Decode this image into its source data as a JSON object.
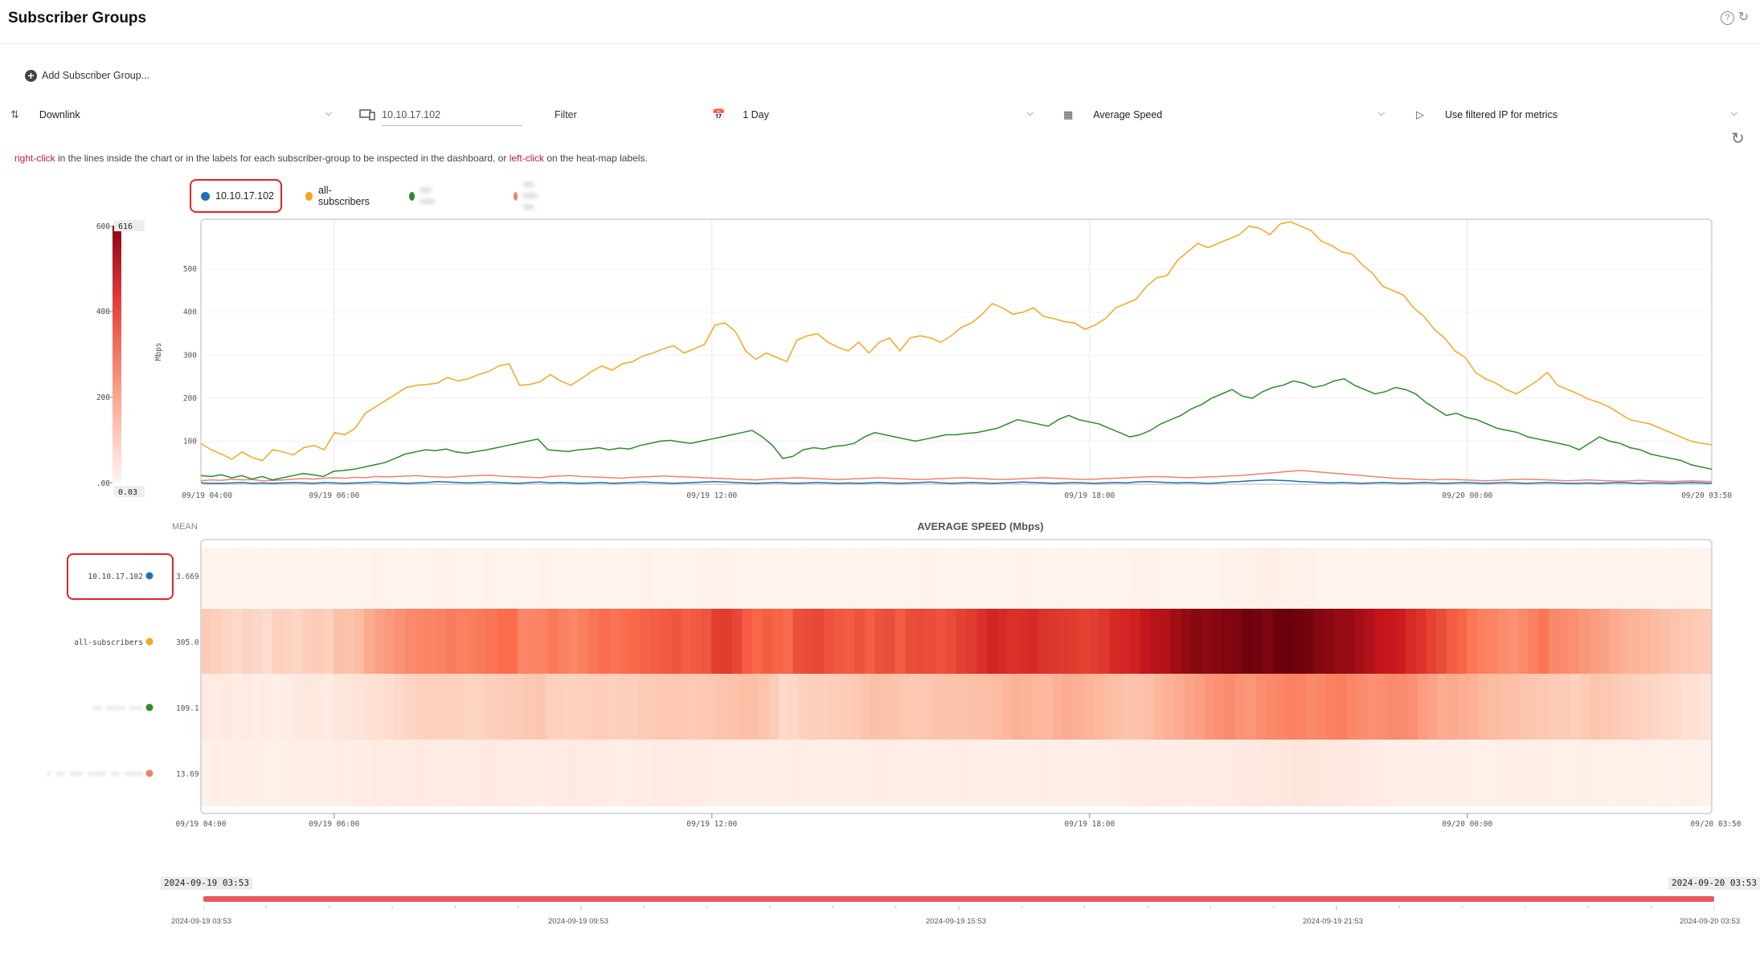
{
  "header": {
    "title": "Subscriber Groups",
    "help_icon": "question-circle-icon",
    "refresh_icon": "refresh-icon"
  },
  "toolbar": {
    "add_group_label": "Add Subscriber Group...",
    "direction": "Downlink",
    "ip_filter_value": "10.10.17.102",
    "filter_label": "Filter",
    "period": "1 Day",
    "metric": "Average Speed",
    "ip_mode": "Use filtered IP for metrics"
  },
  "hint": {
    "right_click": "right-click",
    "middle": " in the lines inside the chart or in the labels for each subscriber-group to be inspected in the dashboard, or ",
    "left_click": "left-click",
    "end": " on the heat-map labels."
  },
  "legend": [
    {
      "name": "10.10.17.102",
      "color": "#1f6fb2"
    },
    {
      "name": "all-subscribers",
      "color": "#f5a623"
    },
    {
      "name": "••• ••••",
      "color": "#2e8b2e",
      "blurred": true
    },
    {
      "name": "••• •••• •••",
      "color": "#f08070",
      "blurred": true
    }
  ],
  "colors": {
    "accent_red": "#e0242a",
    "hint_red": "#c21d3f",
    "heat_max": "#6b0013",
    "heat_min": "#fff5f0"
  },
  "color_scale": {
    "max_label": "616",
    "min_label": "0.03",
    "ticks": [
      "600",
      "400",
      "200",
      "0.00"
    ]
  },
  "line_chart": {
    "ylabel": "Mbps",
    "y_ticks": [
      "100",
      "200",
      "300",
      "400",
      "500"
    ],
    "x_ticks": [
      "09/19 04:00",
      "09/19 06:00",
      "09/19 12:00",
      "09/19 18:00",
      "09/20 00:00",
      "09/20 03:50"
    ]
  },
  "heatmap": {
    "title": "AVERAGE SPEED (Mbps)",
    "mean_label": "MEAN",
    "rows": [
      {
        "label": "10.10.17.102",
        "mean": "3.669",
        "color": "#1f6fb2"
      },
      {
        "label": "all-subscribers",
        "mean": "305.0",
        "color": "#f5a623"
      },
      {
        "label": "•• •••• •••",
        "mean": "109.1",
        "color": "#2e8b2e",
        "blurred": true
      },
      {
        "label": "• •• ••• •••• •• ••••",
        "mean": "13.69",
        "color": "#f08070",
        "blurred": true
      }
    ],
    "x_ticks": [
      "09/19 04:00",
      "09/19 06:00",
      "09/19 12:00",
      "09/19 18:00",
      "09/20 00:00",
      "09/20 03:50"
    ]
  },
  "timeline": {
    "start": "2024-09-19 03:53",
    "end": "2024-09-20 03:53",
    "labels": [
      "2024-09-19 03:53",
      "2024-09-19 09:53",
      "2024-09-19 15:53",
      "2024-09-19 21:53",
      "2024-09-20 03:53"
    ]
  },
  "chart_data": {
    "type": "line",
    "ylabel": "Mbps",
    "x_range": [
      "09/19 03:53",
      "09/20 03:53"
    ],
    "ylim": [
      0,
      616
    ],
    "series": [
      {
        "name": "all-subscribers",
        "color": "#f5a623",
        "values": [
          95,
          80,
          70,
          58,
          75,
          62,
          55,
          80,
          75,
          68,
          85,
          90,
          80,
          120,
          115,
          130,
          165,
          180,
          195,
          210,
          225,
          230,
          232,
          235,
          248,
          240,
          245,
          255,
          262,
          275,
          280,
          230,
          232,
          238,
          255,
          240,
          230,
          245,
          262,
          275,
          265,
          280,
          285,
          298,
          305,
          315,
          322,
          305,
          315,
          325,
          370,
          375,
          355,
          310,
          290,
          305,
          295,
          285,
          335,
          345,
          350,
          330,
          318,
          310,
          330,
          305,
          330,
          340,
          310,
          340,
          345,
          340,
          330,
          345,
          365,
          375,
          395,
          420,
          410,
          395,
          400,
          410,
          390,
          385,
          378,
          375,
          360,
          370,
          385,
          410,
          420,
          430,
          460,
          480,
          485,
          520,
          540,
          560,
          550,
          560,
          570,
          580,
          600,
          595,
          580,
          605,
          610,
          600,
          590,
          565,
          555,
          540,
          535,
          510,
          490,
          460,
          450,
          440,
          410,
          390,
          360,
          340,
          310,
          295,
          260,
          245,
          235,
          220,
          210,
          225,
          240,
          260,
          230,
          220,
          210,
          198,
          190,
          180,
          165,
          150,
          145,
          140,
          130,
          120,
          110,
          100,
          95,
          92
        ]
      },
      {
        "name": "10.10.17.102",
        "color": "#1f6fb2",
        "values": [
          3,
          2,
          2,
          3,
          4,
          2,
          3,
          2,
          3,
          4,
          3,
          2,
          4,
          3,
          2,
          3,
          4,
          5,
          4,
          3,
          2,
          3,
          4,
          6,
          5,
          4,
          3,
          4,
          5,
          4,
          3,
          2,
          4,
          5,
          3,
          4,
          3,
          2,
          3,
          4,
          2,
          3,
          4,
          5,
          4,
          3,
          2,
          3,
          4,
          5,
          6,
          5,
          4,
          3,
          2,
          3,
          4,
          3,
          2,
          3,
          4,
          3,
          2,
          3,
          2,
          3,
          4,
          3,
          2,
          3,
          4,
          5,
          3,
          2,
          3,
          4,
          3,
          2,
          3,
          4,
          5,
          4,
          3,
          2,
          3,
          4,
          3,
          2,
          3,
          4,
          3,
          5,
          6,
          5,
          4,
          3,
          4,
          3,
          2,
          3,
          5,
          6,
          8,
          9,
          10,
          9,
          8,
          6,
          5,
          4,
          3,
          4,
          3,
          2,
          3,
          4,
          3,
          2,
          3,
          4,
          3,
          2,
          3,
          4,
          3,
          2,
          3,
          4,
          3,
          2,
          3,
          4,
          3,
          2,
          2,
          3,
          2,
          3,
          4,
          3,
          2,
          3,
          3,
          2,
          3,
          4,
          3,
          2
        ]
      },
      {
        "name": "••• ••••",
        "color": "#2e8b2e",
        "values": [
          20,
          18,
          22,
          15,
          20,
          12,
          18,
          10,
          15,
          20,
          25,
          22,
          18,
          30,
          32,
          35,
          40,
          45,
          50,
          60,
          70,
          75,
          80,
          78,
          82,
          75,
          72,
          76,
          80,
          85,
          90,
          95,
          100,
          105,
          80,
          78,
          76,
          80,
          82,
          85,
          80,
          84,
          82,
          90,
          95,
          100,
          102,
          98,
          95,
          100,
          105,
          110,
          115,
          120,
          125,
          110,
          90,
          60,
          65,
          80,
          85,
          82,
          88,
          90,
          95,
          110,
          120,
          115,
          110,
          105,
          100,
          105,
          110,
          115,
          115,
          118,
          120,
          125,
          130,
          140,
          150,
          145,
          140,
          135,
          150,
          160,
          150,
          145,
          140,
          130,
          120,
          110,
          115,
          125,
          140,
          150,
          160,
          175,
          185,
          200,
          210,
          220,
          205,
          200,
          215,
          225,
          230,
          240,
          235,
          225,
          230,
          240,
          245,
          230,
          220,
          210,
          215,
          225,
          220,
          210,
          190,
          175,
          160,
          165,
          155,
          150,
          140,
          130,
          125,
          120,
          110,
          105,
          100,
          95,
          90,
          80,
          95,
          110,
          100,
          95,
          85,
          80,
          70,
          65,
          60,
          55,
          45,
          40,
          35
        ]
      },
      {
        "name": "••• •••• •••",
        "color": "#f08070",
        "values": [
          8,
          10,
          9,
          12,
          10,
          11,
          8,
          9,
          10,
          12,
          13,
          12,
          14,
          15,
          14,
          16,
          15,
          18,
          17,
          18,
          19,
          20,
          18,
          17,
          16,
          18,
          19,
          20,
          21,
          19,
          18,
          17,
          16,
          15,
          18,
          19,
          20,
          18,
          17,
          16,
          15,
          14,
          16,
          17,
          18,
          19,
          18,
          17,
          16,
          15,
          14,
          13,
          12,
          11,
          10,
          12,
          13,
          14,
          15,
          14,
          13,
          12,
          11,
          12,
          13,
          14,
          15,
          14,
          13,
          12,
          11,
          12,
          13,
          14,
          15,
          14,
          13,
          12,
          11,
          12,
          13,
          14,
          15,
          14,
          13,
          12,
          11,
          12,
          13,
          14,
          15,
          16,
          17,
          18,
          17,
          16,
          15,
          16,
          17,
          18,
          19,
          20,
          22,
          24,
          26,
          28,
          30,
          32,
          30,
          28,
          26,
          24,
          22,
          20,
          18,
          16,
          14,
          13,
          12,
          11,
          10,
          12,
          11,
          10,
          9,
          8,
          9,
          10,
          11,
          12,
          11,
          10,
          9,
          8,
          9,
          10,
          9,
          8,
          7,
          8,
          9,
          8,
          7,
          6,
          7,
          8,
          7,
          6
        ]
      }
    ],
    "heatmap_means": [
      3.669,
      305.0,
      109.1,
      13.69
    ]
  }
}
